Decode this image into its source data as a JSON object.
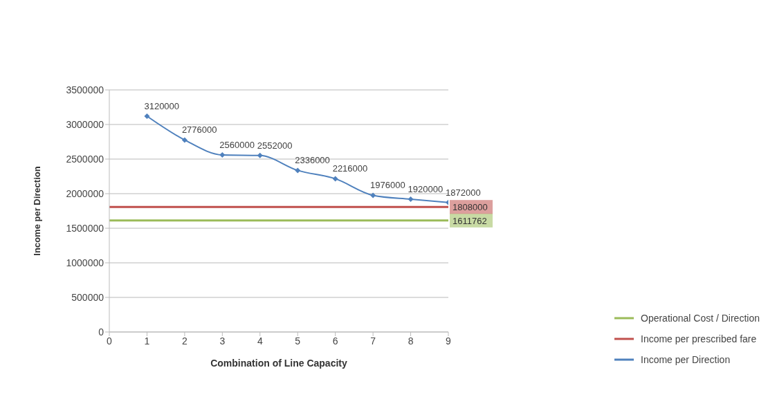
{
  "chart_data": {
    "type": "line",
    "xlabel": "Combination of Line Capacity",
    "ylabel": "Income per Direction",
    "xlim": [
      0,
      9
    ],
    "xticks": [
      0,
      1,
      2,
      3,
      4,
      5,
      6,
      7,
      8,
      9
    ],
    "ylim": [
      0,
      3500000
    ],
    "yticks": [
      0,
      500000,
      1000000,
      1500000,
      2000000,
      2500000,
      3000000,
      3500000
    ],
    "grid": "y",
    "legend": "right",
    "line_style": "solid",
    "series": [
      {
        "name": "Operational Cost / Direction",
        "color": "#9bbb59",
        "x": [
          0,
          9
        ],
        "values": [
          1611762,
          1611762
        ],
        "value_labels": [
          null,
          "1611762"
        ],
        "marker": "none"
      },
      {
        "name": "Income per prescribed fare",
        "color": "#c0504d",
        "x": [
          0,
          9
        ],
        "values": [
          1808000,
          1808000
        ],
        "value_labels": [
          null,
          "1808000"
        ],
        "marker": "none"
      },
      {
        "name": "Income per Direction",
        "color": "#4f81bd",
        "x": [
          1,
          2,
          3,
          4,
          5,
          6,
          7,
          8,
          9
        ],
        "values": [
          3120000,
          2776000,
          2560000,
          2552000,
          2336000,
          2216000,
          1976000,
          1920000,
          1872000
        ],
        "data_labels": true,
        "marker": "diamond"
      }
    ]
  }
}
